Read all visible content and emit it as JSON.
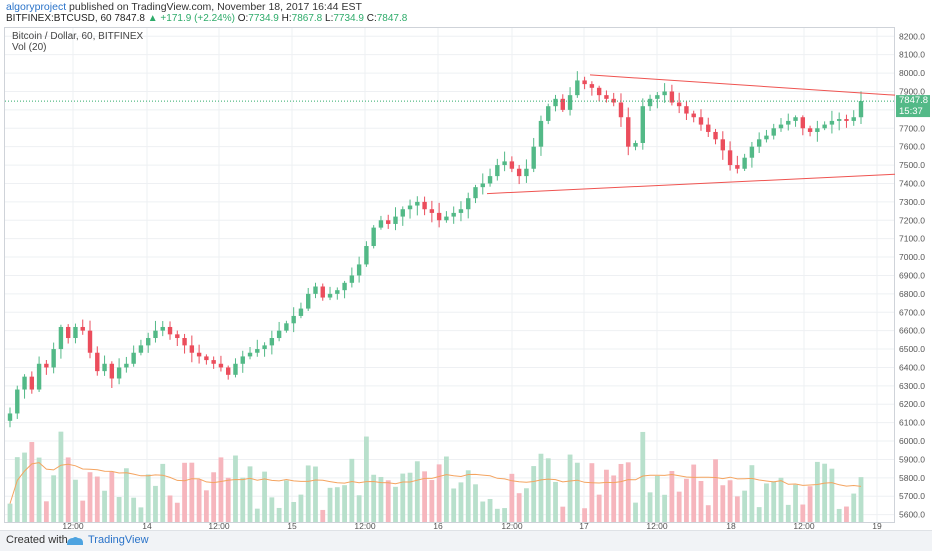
{
  "header": {
    "author": "algoryproject",
    "published": " published on TradingView.com, November 18, 2017 16:44 EST",
    "symbol": "BITFINEX:BTCUSD, 60",
    "last": "7847.8",
    "change": "+171.9 (+2.24%)",
    "o_label": "O:",
    "o": "7734.9",
    "h_label": "H:",
    "h": "7867.8",
    "l_label": "L:",
    "l": "7734.9",
    "c_label": "C:",
    "c": "7847.8"
  },
  "legend": {
    "title": "Bitcoin / Dollar, 60, BITFINEX",
    "vol": "Vol (20)"
  },
  "price_tag": {
    "price": "7847.8",
    "time": "15:37"
  },
  "footer": {
    "created": "Created with",
    "brand": "TradingView"
  },
  "colors": {
    "up": "#53b987",
    "down": "#eb4d5c",
    "vol_up": "#b8e0cc",
    "vol_down": "#f6b6bd",
    "trend": "#ef5350",
    "ma": "#f4a460",
    "grid": "#eef0f3"
  },
  "chart_data": {
    "type": "candlestick",
    "y_ticks": [
      "8200.0",
      "8100.0",
      "8000.0",
      "7900.0",
      "7800.0",
      "7700.0",
      "7600.0",
      "7500.0",
      "7400.0",
      "7300.0",
      "7200.0",
      "7100.0",
      "7000.0",
      "6900.0",
      "6800.0",
      "6700.0",
      "6600.0",
      "6500.0",
      "6400.0",
      "6300.0",
      "6200.0",
      "6100.0",
      "6000.0",
      "5900.0",
      "5800.0",
      "5700.0",
      "5600.0"
    ],
    "ylim": [
      5560,
      8245
    ],
    "x_ticks": [
      "12:00",
      "14",
      "12:00",
      "15",
      "12:00",
      "16",
      "12:00",
      "17",
      "12:00",
      "18",
      "12:00",
      "19"
    ],
    "close_path": [
      6150,
      6280,
      6350,
      6280,
      6420,
      6400,
      6500,
      6620,
      6560,
      6620,
      6600,
      6480,
      6380,
      6420,
      6340,
      6400,
      6420,
      6480,
      6520,
      6560,
      6600,
      6620,
      6580,
      6560,
      6520,
      6480,
      6460,
      6440,
      6420,
      6400,
      6360,
      6420,
      6460,
      6480,
      6500,
      6520,
      6560,
      6600,
      6640,
      6680,
      6720,
      6800,
      6840,
      6780,
      6800,
      6820,
      6860,
      6900,
      6960,
      7060,
      7160,
      7200,
      7180,
      7220,
      7260,
      7280,
      7300,
      7260,
      7240,
      7200,
      7220,
      7240,
      7260,
      7320,
      7380,
      7400,
      7440,
      7500,
      7520,
      7480,
      7440,
      7480,
      7600,
      7740,
      7820,
      7860,
      7800,
      7880,
      7960,
      7940,
      7920,
      7880,
      7860,
      7840,
      7760,
      7600,
      7620,
      7820,
      7860,
      7880,
      7900,
      7840,
      7820,
      7780,
      7760,
      7720,
      7680,
      7640,
      7580,
      7500,
      7480,
      7540,
      7600,
      7640,
      7660,
      7700,
      7720,
      7740,
      7760,
      7700,
      7680,
      7700,
      7720,
      7740,
      7750,
      7740,
      7760,
      7847.8
    ],
    "trendlines": [
      {
        "from": [
          590,
          7990
        ],
        "to": [
          895,
          7880
        ]
      },
      {
        "from": [
          487,
          7345
        ],
        "to": [
          895,
          7450
        ]
      }
    ]
  }
}
